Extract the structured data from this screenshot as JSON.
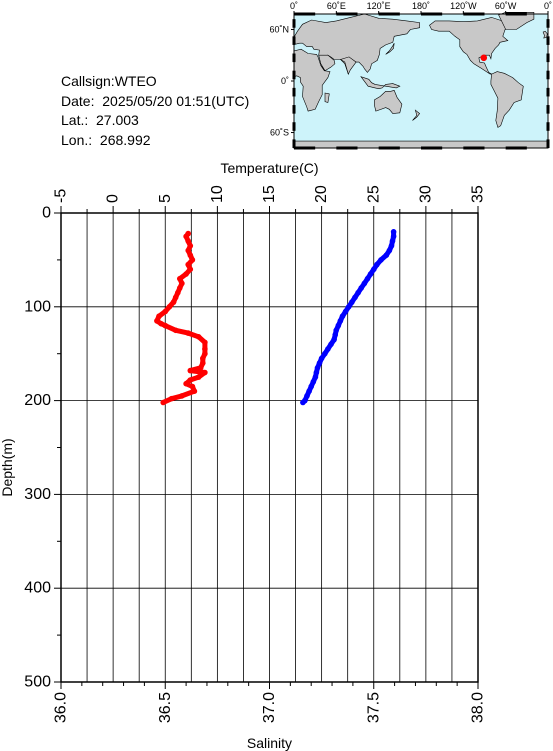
{
  "info": {
    "callsign": "Callsign:WTEO",
    "date": "Date:  2025/05/20 01:51(UTC)",
    "lat": "Lat.:  27.003",
    "lon": "Lon.:  268.992"
  },
  "map": {
    "top_labels": [
      "0˚",
      "60˚E",
      "120˚E",
      "180˚",
      "120˚W",
      "60˚W",
      "0˚"
    ],
    "left_labels": [
      "60˚N",
      "0˚",
      "60˚S"
    ],
    "ocean_color": "#cdf3fa",
    "land_color": "#c8c8c8",
    "marker_color": "#ff0000",
    "marker": {
      "lat": 27.003,
      "lon": 268.992
    }
  },
  "chart_data": {
    "type": "line",
    "ylabel": "Depth(m)",
    "ylim": [
      500,
      0
    ],
    "y_ticks": [
      0,
      100,
      200,
      300,
      400,
      500
    ],
    "top_axis": {
      "label": "Temperature(C)",
      "range": [
        -5,
        35
      ],
      "ticks": [
        -5,
        0,
        5,
        10,
        15,
        20,
        25,
        30,
        35
      ]
    },
    "bottom_axis": {
      "label": "Salinity",
      "range": [
        36.0,
        38.0
      ],
      "ticks": [
        "36.0",
        "36.5",
        "37.0",
        "37.5",
        "38.0"
      ]
    },
    "grid": true,
    "series": [
      {
        "axis": "temperature",
        "color": "#0000ff",
        "points": [
          [
            26.9,
            20
          ],
          [
            26.9,
            25
          ],
          [
            26.8,
            30
          ],
          [
            26.7,
            35
          ],
          [
            26.5,
            40
          ],
          [
            26.2,
            45
          ],
          [
            25.7,
            50
          ],
          [
            25.3,
            55
          ],
          [
            25.0,
            60
          ],
          [
            24.7,
            65
          ],
          [
            24.4,
            70
          ],
          [
            24.1,
            75
          ],
          [
            23.8,
            80
          ],
          [
            23.5,
            85
          ],
          [
            23.2,
            90
          ],
          [
            22.9,
            95
          ],
          [
            22.6,
            100
          ],
          [
            22.3,
            105
          ],
          [
            22.0,
            110
          ],
          [
            21.8,
            115
          ],
          [
            21.6,
            120
          ],
          [
            21.4,
            125
          ],
          [
            21.3,
            130
          ],
          [
            21.2,
            135
          ],
          [
            20.9,
            140
          ],
          [
            20.6,
            145
          ],
          [
            20.3,
            150
          ],
          [
            20.0,
            155
          ],
          [
            19.8,
            160
          ],
          [
            19.6,
            165
          ],
          [
            19.5,
            170
          ],
          [
            19.4,
            175
          ],
          [
            19.2,
            180
          ],
          [
            19.0,
            185
          ],
          [
            18.8,
            190
          ],
          [
            18.6,
            195
          ],
          [
            18.4,
            200
          ],
          [
            18.2,
            202
          ]
        ]
      },
      {
        "axis": "salinity",
        "color": "#ff0000",
        "points": [
          [
            36.61,
            22
          ],
          [
            36.6,
            25
          ],
          [
            36.61,
            30
          ],
          [
            36.62,
            35
          ],
          [
            36.61,
            40
          ],
          [
            36.62,
            45
          ],
          [
            36.63,
            50
          ],
          [
            36.61,
            55
          ],
          [
            36.62,
            60
          ],
          [
            36.6,
            65
          ],
          [
            36.57,
            70
          ],
          [
            36.58,
            75
          ],
          [
            36.57,
            80
          ],
          [
            36.56,
            85
          ],
          [
            36.55,
            90
          ],
          [
            36.54,
            95
          ],
          [
            36.52,
            100
          ],
          [
            36.5,
            105
          ],
          [
            36.47,
            110
          ],
          [
            36.46,
            115
          ],
          [
            36.48,
            118
          ],
          [
            36.5,
            120
          ],
          [
            36.55,
            125
          ],
          [
            36.61,
            128
          ],
          [
            36.66,
            132
          ],
          [
            36.69,
            138
          ],
          [
            36.69,
            145
          ],
          [
            36.69,
            150
          ],
          [
            36.68,
            155
          ],
          [
            36.68,
            160
          ],
          [
            36.67,
            165
          ],
          [
            36.62,
            168
          ],
          [
            36.69,
            170
          ],
          [
            36.66,
            175
          ],
          [
            36.62,
            178
          ],
          [
            36.6,
            182
          ],
          [
            36.63,
            185
          ],
          [
            36.64,
            190
          ],
          [
            36.58,
            195
          ],
          [
            36.53,
            198
          ],
          [
            36.49,
            202
          ]
        ]
      }
    ]
  }
}
